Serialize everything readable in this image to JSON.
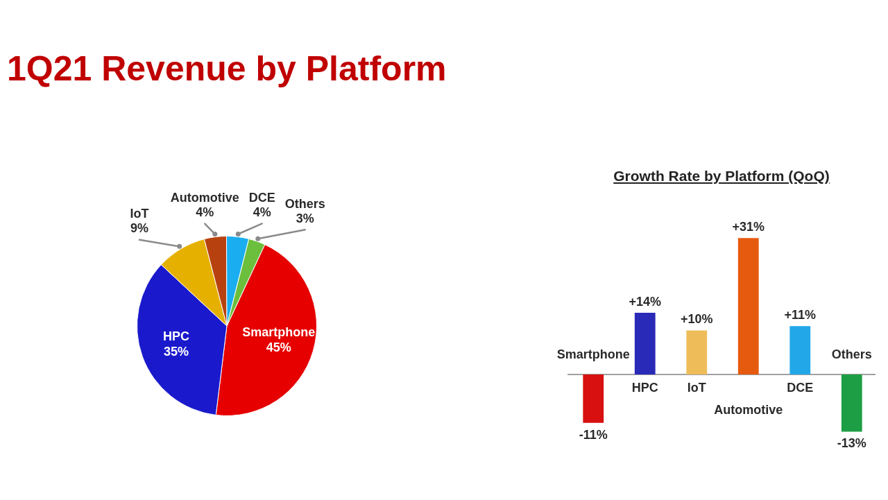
{
  "chart_data": [
    {
      "type": "pie",
      "title": "1Q21 Revenue by Platform",
      "categories": [
        "Smartphone",
        "HPC",
        "IoT",
        "Automotive",
        "DCE",
        "Others"
      ],
      "values": [
        45,
        35,
        9,
        4,
        4,
        3
      ],
      "colors": [
        "#e60000",
        "#1a1acc",
        "#e6b000",
        "#b8420f",
        "#1aaef0",
        "#6cbf3c"
      ],
      "value_labels": [
        "45%",
        "35%",
        "9%",
        "4%",
        "4%",
        "3%"
      ]
    },
    {
      "type": "bar",
      "title": "Growth Rate by Platform (QoQ)",
      "categories": [
        "Smartphone",
        "HPC",
        "IoT",
        "Automotive",
        "DCE",
        "Others"
      ],
      "values": [
        -11,
        14,
        10,
        31,
        11,
        -13
      ],
      "colors": [
        "#d81010",
        "#2a2ab8",
        "#eebd5a",
        "#e65a10",
        "#22a8e8",
        "#1e9e44"
      ],
      "value_labels": [
        "-11%",
        "+14%",
        "+10%",
        "+31%",
        "+11%",
        "-13%"
      ]
    }
  ]
}
